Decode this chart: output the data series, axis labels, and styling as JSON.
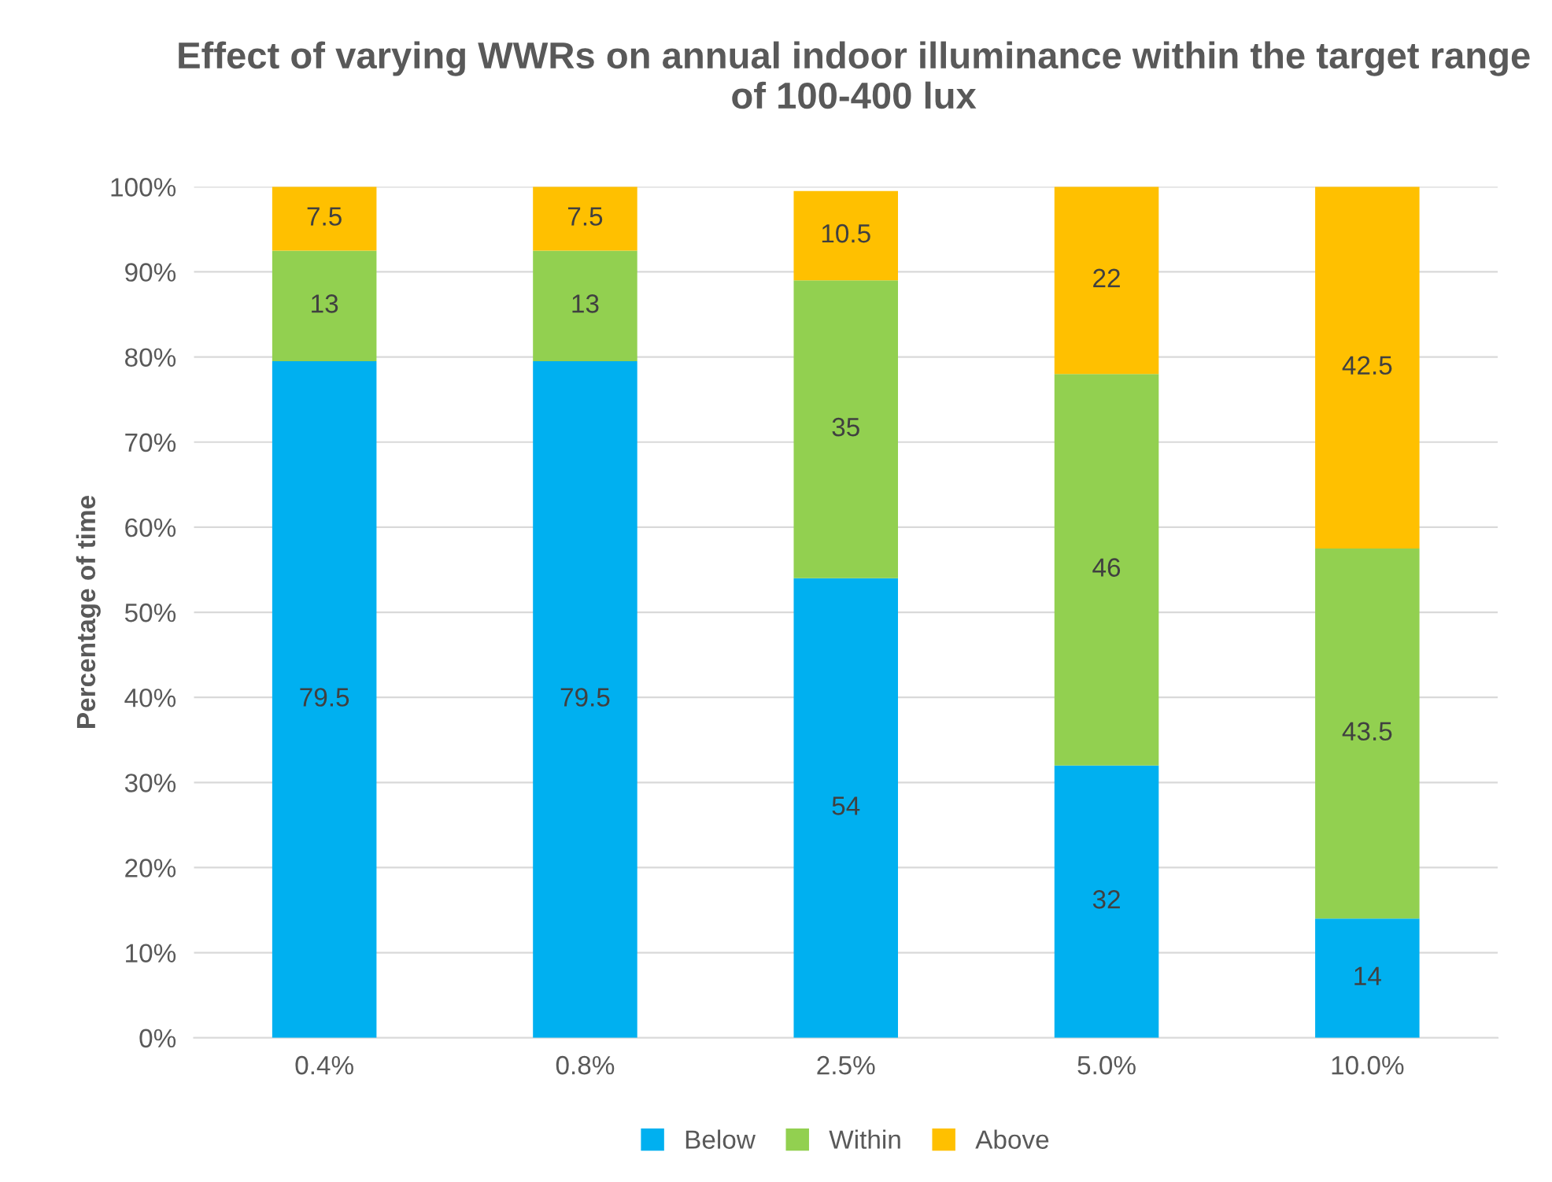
{
  "chart_data": {
    "type": "bar",
    "stacked": true,
    "title": "Effect of varying WWRs on annual indoor illuminance within the target range of 100-400 lux",
    "ylabel": "Percentage of time",
    "categories": [
      "0.4%",
      "0.8%",
      "2.5%",
      "5.0%",
      "10.0%"
    ],
    "series": [
      {
        "name": "Below",
        "color": "#00b0f0",
        "values": [
          79.5,
          79.5,
          54,
          32,
          14
        ]
      },
      {
        "name": "Within",
        "color": "#92d050",
        "values": [
          13,
          13,
          35,
          46,
          43.5
        ]
      },
      {
        "name": "Above",
        "color": "#ffc000",
        "values": [
          7.5,
          7.5,
          10.5,
          22,
          42.5
        ]
      }
    ],
    "ylim": [
      0,
      100
    ],
    "yticks": [
      {
        "value": 0,
        "label": "0%"
      },
      {
        "value": 10,
        "label": "10%"
      },
      {
        "value": 20,
        "label": "20%"
      },
      {
        "value": 30,
        "label": "30%"
      },
      {
        "value": 40,
        "label": "40%"
      },
      {
        "value": 50,
        "label": "50%"
      },
      {
        "value": 60,
        "label": "60%"
      },
      {
        "value": 70,
        "label": "70%"
      },
      {
        "value": 80,
        "label": "80%"
      },
      {
        "value": 90,
        "label": "90%"
      },
      {
        "value": 100,
        "label": "100%"
      }
    ],
    "grid": "y",
    "legend": "bottom",
    "data_labels": true
  }
}
